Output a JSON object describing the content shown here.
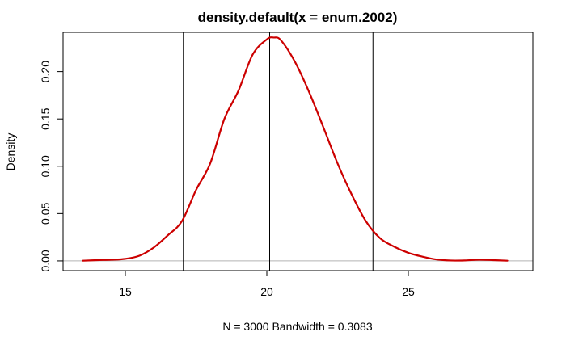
{
  "chart_data": {
    "type": "line",
    "title": "density.default(x = enum.2002)",
    "xlabel": "N = 3000   Bandwidth = 0.3083",
    "ylabel": "Density",
    "xlim": [
      12.8,
      29.4
    ],
    "ylim": [
      -0.0103,
      0.2415
    ],
    "x_ticks": [
      15,
      20,
      25
    ],
    "x_tick_labels": [
      "15",
      "20",
      "25"
    ],
    "y_ticks": [
      0.0,
      0.05,
      0.1,
      0.15,
      0.2
    ],
    "y_tick_labels": [
      "0.00",
      "0.05",
      "0.10",
      "0.15",
      "0.20"
    ],
    "grid": false,
    "baseline_y": 0,
    "baseline_color": "#b3b3b3",
    "vertical_lines": [
      17.05,
      20.1,
      23.75
    ],
    "vertical_line_color": "#000000",
    "series": [
      {
        "color": "#cc0000",
        "x": [
          13.5,
          14.0,
          14.5,
          15.0,
          15.5,
          16.0,
          16.5,
          17.0,
          17.5,
          18.0,
          18.5,
          19.0,
          19.5,
          20.0,
          20.25,
          20.5,
          21.0,
          21.5,
          22.0,
          22.5,
          23.0,
          23.5,
          24.0,
          24.5,
          25.0,
          25.5,
          26.0,
          26.5,
          27.0,
          27.5,
          28.0,
          28.5
        ],
        "y": [
          0.0002,
          0.0008,
          0.0012,
          0.0022,
          0.0055,
          0.014,
          0.027,
          0.042,
          0.075,
          0.103,
          0.15,
          0.18,
          0.218,
          0.234,
          0.236,
          0.233,
          0.21,
          0.178,
          0.141,
          0.103,
          0.07,
          0.042,
          0.024,
          0.015,
          0.0085,
          0.0045,
          0.0015,
          0.0004,
          0.0005,
          0.0012,
          0.0008,
          0.0002
        ]
      }
    ]
  }
}
